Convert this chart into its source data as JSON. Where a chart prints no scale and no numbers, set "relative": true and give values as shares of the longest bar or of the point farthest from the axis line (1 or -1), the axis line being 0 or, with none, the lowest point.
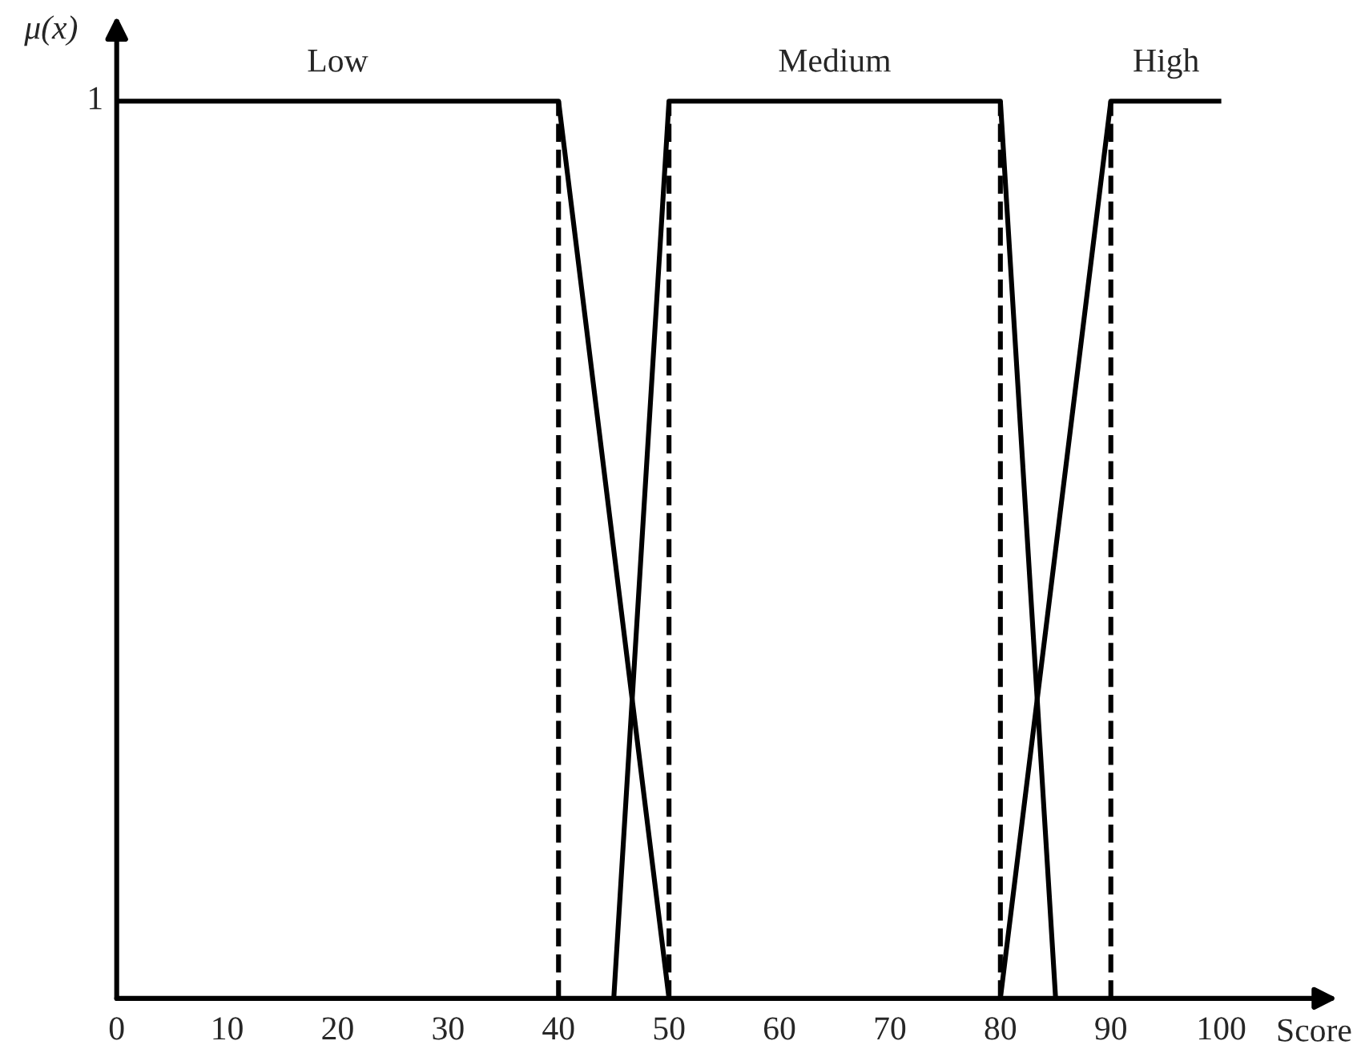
{
  "chart_data": {
    "type": "line",
    "xlabel": "Score",
    "ylabel": "μ(x)",
    "xlim": [
      0,
      100
    ],
    "relative": true,
    "annotations": [
      "1"
    ],
    "xticks": [
      0,
      10,
      20,
      30,
      40,
      50,
      60,
      70,
      80,
      90,
      100
    ],
    "series": [
      {
        "name": "Low",
        "color": "#000000",
        "x": [
          0,
          40,
          50
        ],
        "values": [
          1,
          1,
          0
        ]
      },
      {
        "name": "Medium",
        "color": "#000000",
        "x": [
          45,
          50,
          80,
          85
        ],
        "values": [
          0,
          1,
          1,
          0
        ]
      },
      {
        "name": "High",
        "color": "#000000",
        "x": [
          80,
          90,
          100
        ],
        "values": [
          0,
          1,
          1
        ]
      }
    ],
    "ref_lines": [
      {
        "axis": "x",
        "value": 40,
        "color": "#000000",
        "line_style": "dashed"
      },
      {
        "axis": "x",
        "value": 50,
        "color": "#000000",
        "line_style": "dashed"
      },
      {
        "axis": "x",
        "value": 80,
        "color": "#000000",
        "line_style": "dashed"
      },
      {
        "axis": "x",
        "value": 90,
        "color": "#000000",
        "line_style": "dashed"
      }
    ],
    "grid": false,
    "legend": false,
    "marker": "none",
    "line_style": "solid"
  }
}
